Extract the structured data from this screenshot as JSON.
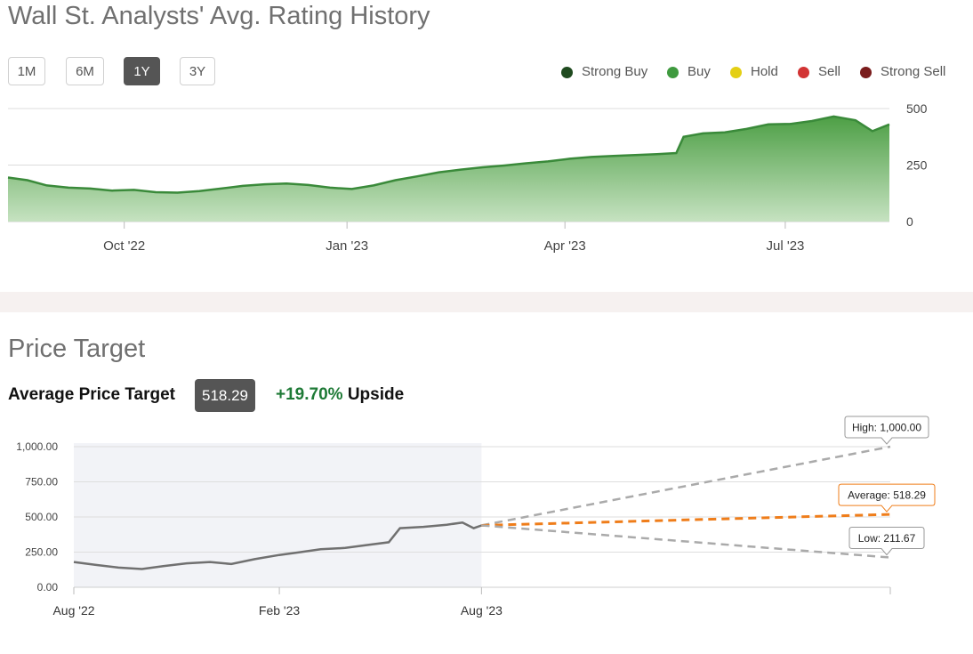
{
  "rating_section": {
    "title": "Wall St. Analysts' Avg. Rating History",
    "ranges": [
      "1M",
      "6M",
      "1Y",
      "3Y"
    ],
    "active_range": "1Y",
    "legend": [
      {
        "label": "Strong Buy",
        "color": "#1f4a1f"
      },
      {
        "label": "Buy",
        "color": "#3f9a3f"
      },
      {
        "label": "Hold",
        "color": "#e4cf14"
      },
      {
        "label": "Sell",
        "color": "#d23333"
      },
      {
        "label": "Strong Sell",
        "color": "#7a1c1c"
      }
    ]
  },
  "price_target_section": {
    "title": "Price Target",
    "average_label": "Average Price Target",
    "average_value": "518.29",
    "upside_value": "+19.70%",
    "upside_word": "Upside",
    "callouts": {
      "high": "High: 1,000.00",
      "average": "Average: 518.29",
      "low": "Low: 211.67"
    }
  },
  "chart_data": [
    {
      "type": "area",
      "series": [
        {
          "name": "Buy",
          "color": "#3f9a3f"
        }
      ],
      "x": [
        "2022-08-14",
        "2022-08-22",
        "2022-08-30",
        "2022-09-08",
        "2022-09-17",
        "2022-09-26",
        "2022-10-05",
        "2022-10-14",
        "2022-10-23",
        "2022-11-01",
        "2022-11-10",
        "2022-11-19",
        "2022-11-28",
        "2022-12-07",
        "2022-12-16",
        "2022-12-25",
        "2023-01-03",
        "2023-01-12",
        "2023-01-21",
        "2023-01-30",
        "2023-02-08",
        "2023-02-17",
        "2023-02-26",
        "2023-03-07",
        "2023-03-16",
        "2023-03-25",
        "2023-04-03",
        "2023-04-12",
        "2023-04-21",
        "2023-04-30",
        "2023-05-09",
        "2023-05-17",
        "2023-05-20",
        "2023-05-28",
        "2023-06-06",
        "2023-06-15",
        "2023-06-24",
        "2023-07-03",
        "2023-07-12",
        "2023-07-21",
        "2023-07-30",
        "2023-08-06",
        "2023-08-13"
      ],
      "values": [
        195,
        183,
        160,
        150,
        146,
        137,
        140,
        130,
        128,
        135,
        146,
        158,
        165,
        168,
        162,
        150,
        144,
        160,
        183,
        200,
        218,
        230,
        240,
        248,
        258,
        266,
        278,
        286,
        290,
        294,
        298,
        303,
        375,
        390,
        395,
        410,
        430,
        432,
        445,
        465,
        448,
        400,
        430
      ],
      "x_ticks": [
        "Oct '22",
        "Jan '23",
        "Apr '23",
        "Jul '23"
      ],
      "y_ticks": [
        "0",
        "250",
        "500"
      ],
      "ylim": [
        0,
        500
      ],
      "grid": true,
      "legend": "top-right"
    },
    {
      "type": "line",
      "x_ticks": [
        "Aug '22",
        "Feb '23",
        "Aug '23"
      ],
      "y_ticks": [
        "0.00",
        "250.00",
        "500.00",
        "750.00",
        "1,000.00"
      ],
      "ylim": [
        0,
        1000
      ],
      "history": {
        "x": [
          "2022-08-01",
          "2022-08-20",
          "2022-09-10",
          "2022-10-01",
          "2022-10-20",
          "2022-11-10",
          "2022-12-01",
          "2022-12-20",
          "2023-01-10",
          "2023-02-01",
          "2023-02-20",
          "2023-03-10",
          "2023-04-01",
          "2023-04-20",
          "2023-05-10",
          "2023-05-20",
          "2023-06-10",
          "2023-07-01",
          "2023-07-15",
          "2023-07-25",
          "2023-08-01"
        ],
        "values": [
          180,
          160,
          140,
          130,
          150,
          170,
          180,
          165,
          200,
          230,
          250,
          270,
          280,
          300,
          320,
          420,
          430,
          445,
          460,
          420,
          440
        ]
      },
      "forecast": [
        {
          "name": "High",
          "start": 440,
          "end": 1000
        },
        {
          "name": "Average",
          "start": 440,
          "end": 518.29
        },
        {
          "name": "Low",
          "start": 440,
          "end": 211.67
        }
      ]
    }
  ]
}
